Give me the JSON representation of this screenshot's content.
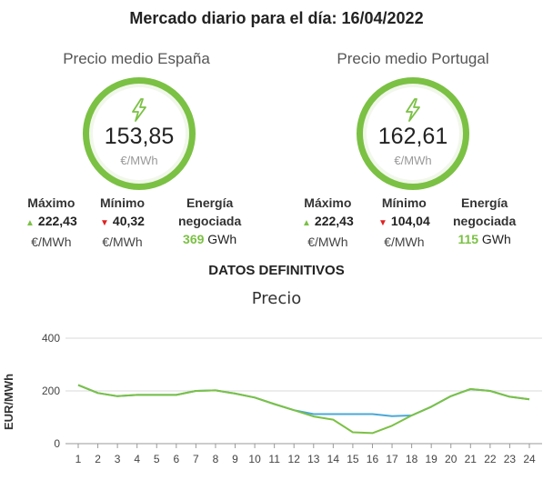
{
  "header": {
    "title": "Mercado diario para el día: 16/04/2022"
  },
  "markets": [
    {
      "label": "Precio medio España",
      "price": "153,85",
      "unit": "€/MWh",
      "max_label": "Máximo",
      "max_value": "222,43",
      "max_unit": "€/MWh",
      "min_label": "Mínimo",
      "min_value": "40,32",
      "min_unit": "€/MWh",
      "energy_label_1": "Energía",
      "energy_label_2": "negociada",
      "energy_value": "369",
      "energy_unit": "GWh"
    },
    {
      "label": "Precio medio Portugal",
      "price": "162,61",
      "unit": "€/MWh",
      "max_label": "Máximo",
      "max_value": "222,43",
      "max_unit": "€/MWh",
      "min_label": "Mínimo",
      "min_value": "104,04",
      "min_unit": "€/MWh",
      "energy_label_1": "Energía",
      "energy_label_2": "negociada",
      "energy_value": "115",
      "energy_unit": "GWh"
    }
  ],
  "section": {
    "title": "DATOS DEFINITIVOS"
  },
  "colors": {
    "accent_green": "#7bc144",
    "series_blue": "#4aa8d8",
    "down_red": "#e02020"
  },
  "chart_data": {
    "type": "line",
    "title": "Precio",
    "xlabel": "",
    "ylabel": "EUR/MWh",
    "x": [
      "1",
      "2",
      "3",
      "4",
      "5",
      "6",
      "7",
      "8",
      "9",
      "10",
      "11",
      "12",
      "13",
      "14",
      "15",
      "16",
      "17",
      "18",
      "19",
      "20",
      "21",
      "22",
      "23",
      "24"
    ],
    "ylim": [
      0,
      400
    ],
    "yticks": [
      0,
      200,
      400
    ],
    "grid": "horizontal",
    "series": [
      {
        "color": "#4aa8d8",
        "values": [
          222,
          192,
          180,
          185,
          185,
          185,
          200,
          202,
          190,
          175,
          150,
          127,
          112,
          112,
          112,
          112,
          104,
          107,
          140,
          180,
          207,
          200,
          178,
          168
        ]
      },
      {
        "color": "#7bc144",
        "values": [
          222,
          192,
          180,
          185,
          185,
          185,
          200,
          202,
          190,
          175,
          150,
          127,
          103,
          91,
          43,
          40,
          68,
          107,
          140,
          180,
          207,
          200,
          178,
          168
        ]
      }
    ]
  }
}
